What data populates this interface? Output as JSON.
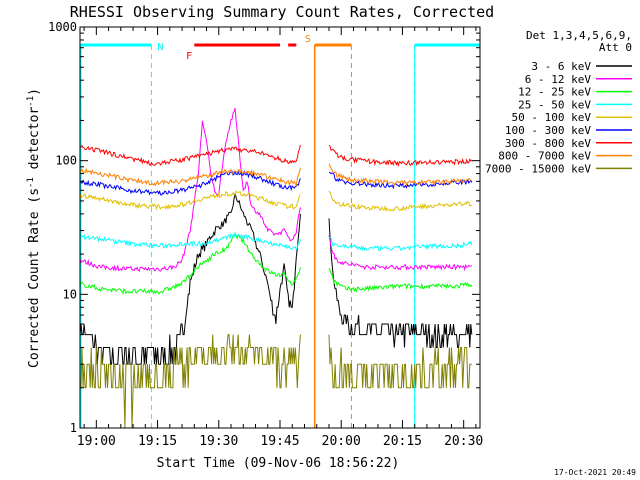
{
  "chart_data": {
    "type": "line",
    "title": "RHESSI Observing Summary Count Rates, Corrected",
    "xlabel": "Start Time (09-Nov-06 18:56:22)",
    "ylabel": "Corrected Count Rate (s⁻¹ detector⁻¹)",
    "ylabel_parts": [
      "Corrected Count Rate (s",
      "-1",
      " detector",
      "-1",
      ")"
    ],
    "y_scale": "log",
    "ylim": [
      1,
      1000
    ],
    "xlim_min": [
      0,
      98
    ],
    "x_ticks": [
      {
        "min": 4,
        "label": "19:00"
      },
      {
        "min": 19,
        "label": "19:15"
      },
      {
        "min": 34,
        "label": "19:30"
      },
      {
        "min": 49,
        "label": "19:45"
      },
      {
        "min": 64,
        "label": "20:00"
      },
      {
        "min": 79,
        "label": "20:15"
      },
      {
        "min": 94,
        "label": "20:30"
      }
    ],
    "y_ticks": [
      {
        "value": 1,
        "label": "1"
      },
      {
        "value": 10,
        "label": "10"
      },
      {
        "value": 100,
        "label": "100"
      },
      {
        "value": 1000,
        "label": "1000"
      }
    ],
    "legend_header": [
      "Det 1,3,4,5,6,9,",
      "Att 0"
    ],
    "legend_position": "right",
    "footer": "17-Oct-2021 20:49",
    "series": [
      {
        "name": "3 - 6 keV",
        "color": "#000000",
        "points": [
          [
            0,
            5.5
          ],
          [
            3,
            4.5
          ],
          [
            5,
            3.6
          ],
          [
            15,
            3.5
          ],
          [
            20,
            3.5
          ],
          [
            23,
            3.8
          ],
          [
            25,
            5
          ],
          [
            27,
            12
          ],
          [
            29,
            20
          ],
          [
            31,
            24
          ],
          [
            33,
            30
          ],
          [
            35,
            34
          ],
          [
            37,
            40
          ],
          [
            38,
            55
          ],
          [
            39,
            48
          ],
          [
            40,
            40
          ],
          [
            42,
            30
          ],
          [
            44,
            20
          ],
          [
            46,
            12
          ],
          [
            47,
            8
          ],
          [
            48,
            7
          ],
          [
            49,
            11
          ],
          [
            50,
            16
          ],
          [
            51,
            9
          ],
          [
            52,
            7.5
          ],
          [
            53,
            20
          ],
          [
            54,
            40
          ]
        ],
        "segment2": [
          [
            61,
            35
          ],
          [
            62,
            14
          ],
          [
            63,
            9
          ],
          [
            64,
            7
          ],
          [
            66,
            6
          ],
          [
            70,
            5.5
          ],
          [
            72,
            5.5
          ],
          [
            78,
            5
          ],
          [
            80,
            5.3
          ],
          [
            86,
            5
          ],
          [
            92,
            5
          ],
          [
            96,
            5.3
          ]
        ]
      },
      {
        "name": "6 - 12 keV",
        "color": "#ff00ff",
        "points": [
          [
            0,
            18
          ],
          [
            5,
            16
          ],
          [
            12,
            15.5
          ],
          [
            20,
            15.5
          ],
          [
            23,
            16
          ],
          [
            25,
            18
          ],
          [
            27,
            30
          ],
          [
            29,
            80
          ],
          [
            30,
            200
          ],
          [
            31,
            140
          ],
          [
            32,
            80
          ],
          [
            33,
            60
          ],
          [
            34,
            55
          ],
          [
            35,
            100
          ],
          [
            36,
            150
          ],
          [
            37,
            200
          ],
          [
            38,
            240
          ],
          [
            39,
            120
          ],
          [
            40,
            60
          ],
          [
            41,
            70
          ],
          [
            42,
            45
          ],
          [
            44,
            40
          ],
          [
            46,
            30
          ],
          [
            48,
            28
          ],
          [
            50,
            30
          ],
          [
            52,
            25
          ],
          [
            53,
            30
          ],
          [
            54,
            45
          ]
        ],
        "segment2": [
          [
            61,
            28
          ],
          [
            62,
            20
          ],
          [
            63,
            18
          ],
          [
            65,
            17
          ],
          [
            70,
            16
          ],
          [
            78,
            16
          ],
          [
            86,
            16
          ],
          [
            92,
            16
          ],
          [
            96,
            16
          ]
        ]
      },
      {
        "name": "12 - 25 keV",
        "color": "#00ff00",
        "points": [
          [
            0,
            12
          ],
          [
            5,
            11
          ],
          [
            12,
            10.5
          ],
          [
            20,
            10.5
          ],
          [
            25,
            12
          ],
          [
            28,
            15
          ],
          [
            30,
            17
          ],
          [
            33,
            20
          ],
          [
            36,
            22
          ],
          [
            38,
            28
          ],
          [
            40,
            25
          ],
          [
            42,
            20
          ],
          [
            44,
            17
          ],
          [
            46,
            15
          ],
          [
            48,
            14
          ],
          [
            50,
            14
          ],
          [
            52,
            12
          ],
          [
            53,
            13
          ],
          [
            54,
            16
          ]
        ],
        "segment2": [
          [
            61,
            16
          ],
          [
            62,
            13
          ],
          [
            63,
            12
          ],
          [
            65,
            11
          ],
          [
            70,
            11
          ],
          [
            78,
            11.5
          ],
          [
            86,
            11.5
          ],
          [
            92,
            11.5
          ],
          [
            96,
            12
          ]
        ]
      },
      {
        "name": "25 - 50 keV",
        "color": "#00ffff",
        "points": [
          [
            0,
            27
          ],
          [
            5,
            26
          ],
          [
            12,
            24
          ],
          [
            20,
            23
          ],
          [
            25,
            24
          ],
          [
            30,
            24
          ],
          [
            35,
            26
          ],
          [
            38,
            28
          ],
          [
            40,
            27
          ],
          [
            45,
            25
          ],
          [
            50,
            23
          ],
          [
            53,
            22
          ],
          [
            54,
            25
          ]
        ],
        "segment2": [
          [
            61,
            27
          ],
          [
            62,
            24
          ],
          [
            64,
            23
          ],
          [
            70,
            22
          ],
          [
            78,
            22
          ],
          [
            86,
            23
          ],
          [
            92,
            23
          ],
          [
            96,
            24
          ]
        ]
      },
      {
        "name": "50 - 100 keV",
        "color": "#e0c000",
        "points": [
          [
            0,
            55
          ],
          [
            5,
            52
          ],
          [
            12,
            47
          ],
          [
            20,
            45
          ],
          [
            25,
            47
          ],
          [
            30,
            52
          ],
          [
            35,
            56
          ],
          [
            38,
            57
          ],
          [
            42,
            55
          ],
          [
            46,
            50
          ],
          [
            50,
            46
          ],
          [
            53,
            45
          ],
          [
            54,
            55
          ]
        ],
        "segment2": [
          [
            61,
            60
          ],
          [
            62,
            52
          ],
          [
            63,
            48
          ],
          [
            66,
            46
          ],
          [
            72,
            44
          ],
          [
            78,
            44
          ],
          [
            86,
            46
          ],
          [
            92,
            47
          ],
          [
            96,
            48
          ]
        ]
      },
      {
        "name": "100 - 300 keV",
        "color": "#0000ff",
        "points": [
          [
            0,
            70
          ],
          [
            5,
            66
          ],
          [
            12,
            60
          ],
          [
            20,
            57
          ],
          [
            25,
            60
          ],
          [
            30,
            66
          ],
          [
            35,
            78
          ],
          [
            38,
            82
          ],
          [
            42,
            78
          ],
          [
            46,
            70
          ],
          [
            50,
            63
          ],
          [
            53,
            62
          ],
          [
            54,
            75
          ]
        ],
        "segment2": [
          [
            61,
            85
          ],
          [
            62,
            78
          ],
          [
            63,
            72
          ],
          [
            66,
            68
          ],
          [
            72,
            66
          ],
          [
            78,
            65
          ],
          [
            86,
            67
          ],
          [
            92,
            68
          ],
          [
            96,
            70
          ]
        ]
      },
      {
        "name": "300 - 800 keV",
        "color": "#ff0000",
        "points": [
          [
            0,
            125
          ],
          [
            5,
            118
          ],
          [
            12,
            105
          ],
          [
            18,
            95
          ],
          [
            24,
            100
          ],
          [
            30,
            110
          ],
          [
            35,
            120
          ],
          [
            38,
            122
          ],
          [
            42,
            118
          ],
          [
            46,
            110
          ],
          [
            50,
            100
          ],
          [
            53,
            97
          ],
          [
            54,
            130
          ]
        ],
        "segment2": [
          [
            61,
            130
          ],
          [
            62,
            118
          ],
          [
            63,
            110
          ],
          [
            66,
            102
          ],
          [
            72,
            98
          ],
          [
            78,
            96
          ],
          [
            86,
            97
          ],
          [
            92,
            98
          ],
          [
            96,
            100
          ]
        ]
      },
      {
        "name": "800 - 7000 keV",
        "color": "#ff8000",
        "points": [
          [
            0,
            85
          ],
          [
            5,
            80
          ],
          [
            12,
            72
          ],
          [
            18,
            68
          ],
          [
            24,
            70
          ],
          [
            30,
            76
          ],
          [
            35,
            82
          ],
          [
            38,
            84
          ],
          [
            42,
            82
          ],
          [
            46,
            76
          ],
          [
            50,
            70
          ],
          [
            53,
            68
          ],
          [
            54,
            90
          ]
        ],
        "segment2": [
          [
            61,
            95
          ],
          [
            62,
            84
          ],
          [
            63,
            78
          ],
          [
            66,
            72
          ],
          [
            72,
            70
          ],
          [
            78,
            68
          ],
          [
            86,
            69
          ],
          [
            92,
            70
          ],
          [
            96,
            72
          ]
        ]
      },
      {
        "name": "7000 - 15000 keV",
        "color": "#808000",
        "points": [
          [
            0,
            3
          ],
          [
            5,
            2.6
          ],
          [
            12,
            2.2
          ],
          [
            18,
            2.5
          ],
          [
            24,
            3
          ],
          [
            30,
            3.5
          ],
          [
            35,
            3.8
          ],
          [
            40,
            4
          ],
          [
            45,
            3.6
          ],
          [
            50,
            3
          ],
          [
            53,
            3
          ],
          [
            54,
            4
          ]
        ],
        "segment2": [
          [
            61,
            4
          ],
          [
            62,
            3
          ],
          [
            66,
            2.6
          ],
          [
            72,
            2.5
          ],
          [
            78,
            2.6
          ],
          [
            86,
            2.8
          ],
          [
            92,
            3
          ],
          [
            96,
            3
          ]
        ]
      }
    ],
    "annotations": [
      {
        "label": "N",
        "color": "#00ffff",
        "bars": [
          [
            0,
            17.5
          ],
          [
            82,
            98
          ]
        ],
        "ticks": [
          17.5,
          82
        ]
      },
      {
        "label": "F",
        "color": "#ff0000",
        "bars": [
          [
            28,
            49
          ],
          [
            51,
            53
          ]
        ]
      },
      {
        "label": "S",
        "color": "#ff8000",
        "bars": [
          [
            57.5,
            66.5
          ]
        ],
        "ticks": [
          57.5,
          66.5
        ]
      }
    ]
  }
}
